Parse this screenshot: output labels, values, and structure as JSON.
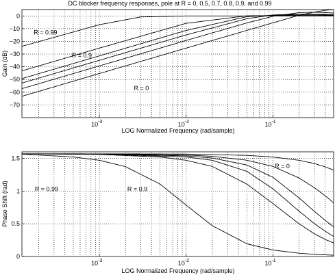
{
  "figure_title": "DC blocker frequency responses, pole at R = 0, 0.5, 0.7, 0.8, 0.9, and 0.99",
  "chart_data": [
    {
      "type": "line",
      "id": "gain",
      "title": "DC blocker frequency responses, pole at R = 0, 0.5, 0.7, 0.8, 0.9, and 0.99",
      "xlabel": "LOG Normalized Frequency (rad/sample)",
      "ylabel": "Gain (dB)",
      "xscale": "log",
      "xlim": [
        0.000128,
        0.5
      ],
      "ylim": [
        -80,
        5
      ],
      "grid": true,
      "x_ticks": [
        {
          "value": 0.001,
          "label": "10"
        },
        {
          "value": 0.01,
          "label": "10"
        },
        {
          "value": 0.1,
          "label": "10"
        }
      ],
      "x_tick_exponents": [
        "-3",
        "-2",
        "-1"
      ],
      "y_ticks": [
        0,
        -10,
        -20,
        -30,
        -40,
        -50,
        -60,
        -70
      ],
      "y_tick_labels": [
        "0",
        "−10",
        "−20",
        "−30",
        "−40",
        "−50",
        "−60",
        "−70"
      ],
      "series": [
        {
          "R": 0,
          "x": [
            0.000128,
            0.001,
            0.01,
            0.05,
            0.1,
            0.2,
            0.3,
            0.4,
            0.5
          ],
          "y": [
            -63.2,
            -45.3,
            -25.3,
            -11.4,
            -5.4,
            0.5,
            3.0,
            4.4,
            5.1
          ]
        },
        {
          "R": 0.5,
          "x": [
            0.000128,
            0.001,
            0.01,
            0.05,
            0.1,
            0.2,
            0.3,
            0.4,
            0.5
          ],
          "y": [
            -57.2,
            -39.3,
            -19.3,
            -5.5,
            -0.3,
            2.6,
            2.9,
            2.6,
            2.3
          ]
        },
        {
          "R": 0.7,
          "x": [
            0.000128,
            0.001,
            0.01,
            0.05,
            0.1,
            0.2,
            0.3,
            0.4,
            0.5
          ],
          "y": [
            -52.8,
            -34.9,
            -14.9,
            -2.2,
            0.8,
            1.4,
            1.3,
            1.2,
            1.1
          ]
        },
        {
          "R": 0.8,
          "x": [
            0.000128,
            0.001,
            0.01,
            0.05,
            0.1,
            0.2,
            0.3,
            0.4,
            0.5
          ],
          "y": [
            -49.3,
            -31.4,
            -11.4,
            -0.6,
            0.6,
            0.8,
            0.8,
            0.7,
            0.6
          ]
        },
        {
          "R": 0.9,
          "x": [
            0.000128,
            0.001,
            0.01,
            0.05,
            0.1,
            0.2,
            0.3,
            0.4,
            0.5
          ],
          "y": [
            -43.2,
            -25.3,
            -5.8,
            0.1,
            0.3,
            0.3,
            0.3,
            0.3,
            0.3
          ]
        },
        {
          "R": 0.99,
          "x": [
            0.000128,
            0.001,
            0.003,
            0.01,
            0.05,
            0.1,
            0.2,
            0.5
          ],
          "y": [
            -23.9,
            -6.9,
            -0.8,
            0.0,
            0.0,
            0.0,
            0.0,
            0.0
          ]
        }
      ],
      "annotations": [
        {
          "text": "R = 0.99",
          "x": 0.000175,
          "y": -13
        },
        {
          "text": "R = 0.9",
          "x": 0.00048,
          "y": -31
        },
        {
          "text": "R = 0",
          "x": 0.0025,
          "y": -57
        }
      ]
    },
    {
      "type": "line",
      "id": "phase",
      "title": "",
      "xlabel": "LOG Normalized Frequency (rad/sample)",
      "ylabel": "Phase Shift (rad)",
      "xscale": "log",
      "xlim": [
        0.000128,
        0.5
      ],
      "ylim": [
        0,
        1.6
      ],
      "grid": true,
      "x_ticks": [
        {
          "value": 0.001,
          "label": "10"
        },
        {
          "value": 0.01,
          "label": "10"
        },
        {
          "value": 0.1,
          "label": "10"
        }
      ],
      "x_tick_exponents": [
        "-3",
        "-2",
        "-1"
      ],
      "y_ticks": [
        0,
        0.5,
        1,
        1.5
      ],
      "y_tick_labels": [
        "0",
        "0.5",
        "1",
        "1.5"
      ],
      "series": [
        {
          "R": 0,
          "x": [
            0.000128,
            0.001,
            0.01,
            0.05,
            0.1,
            0.2,
            0.3,
            0.4,
            0.5
          ],
          "y": [
            1.571,
            1.57,
            1.566,
            1.546,
            1.521,
            1.471,
            1.421,
            1.371,
            1.321
          ]
        },
        {
          "R": 0.5,
          "x": [
            0.000128,
            0.001,
            0.01,
            0.02,
            0.05,
            0.1,
            0.2,
            0.3,
            0.4,
            0.5
          ],
          "y": [
            1.57,
            1.568,
            1.551,
            1.531,
            1.472,
            1.377,
            1.2,
            1.051,
            0.928,
            0.821
          ]
        },
        {
          "R": 0.7,
          "x": [
            0.000128,
            0.001,
            0.01,
            0.02,
            0.05,
            0.1,
            0.2,
            0.3,
            0.4,
            0.5
          ],
          "y": [
            1.57,
            1.567,
            1.538,
            1.505,
            1.399,
            1.21,
            0.895,
            0.69,
            0.552,
            0.451
          ]
        },
        {
          "R": 0.8,
          "x": [
            0.000128,
            0.001,
            0.01,
            0.02,
            0.05,
            0.1,
            0.2,
            0.3,
            0.4,
            0.5
          ],
          "y": [
            1.57,
            1.566,
            1.521,
            1.471,
            1.302,
            1.034,
            0.693,
            0.502,
            0.386,
            0.306
          ]
        },
        {
          "R": 0.9,
          "x": [
            0.000128,
            0.001,
            0.005,
            0.01,
            0.02,
            0.05,
            0.1,
            0.2,
            0.3,
            0.4,
            0.5
          ],
          "y": [
            1.569,
            1.56,
            1.521,
            1.471,
            1.377,
            1.107,
            0.809,
            0.5,
            0.346,
            0.261,
            0.207
          ]
        },
        {
          "R": 0.99,
          "x": [
            0.000128,
            0.0005,
            0.001,
            0.002,
            0.005,
            0.01,
            0.02,
            0.05,
            0.1,
            0.2,
            0.3,
            0.4,
            0.5
          ],
          "y": [
            1.565,
            1.521,
            1.471,
            1.373,
            1.107,
            0.785,
            0.47,
            0.195,
            0.099,
            0.05,
            0.033,
            0.025,
            0.02
          ]
        }
      ],
      "annotations": [
        {
          "text": "R = 0",
          "x": 0.105,
          "y": 1.38
        },
        {
          "text": "R = 0.99",
          "x": 0.00018,
          "y": 1.03
        },
        {
          "text": "R = 0.9",
          "x": 0.0021,
          "y": 1.03
        }
      ]
    }
  ]
}
